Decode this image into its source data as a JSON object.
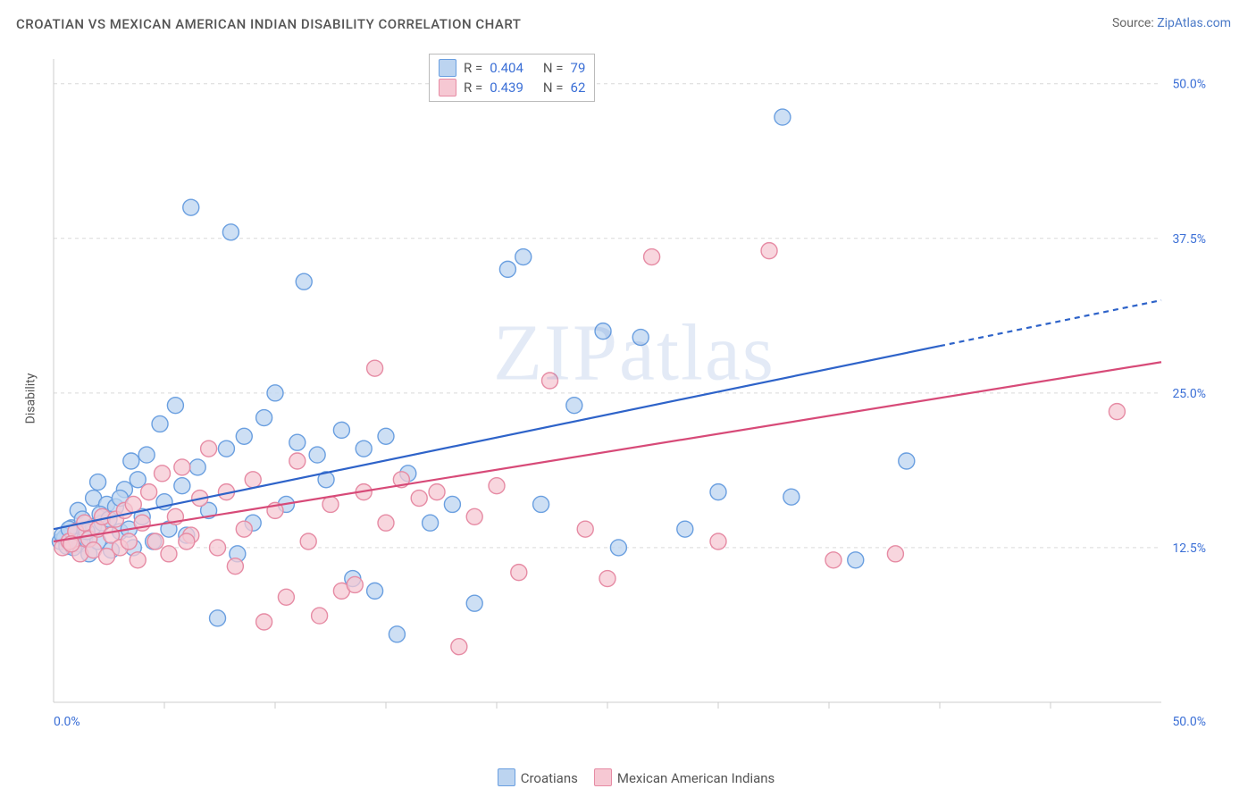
{
  "header": {
    "title": "CROATIAN VS MEXICAN AMERICAN INDIAN DISABILITY CORRELATION CHART",
    "source_prefix": "Source: ",
    "source_link": "ZipAtlas.com"
  },
  "axes": {
    "ylabel": "Disability",
    "x_min_label": "0.0%",
    "x_max_label": "50.0%",
    "y_ticks": [
      {
        "v": 12.5,
        "label": "12.5%"
      },
      {
        "v": 25.0,
        "label": "25.0%"
      },
      {
        "v": 37.5,
        "label": "37.5%"
      },
      {
        "v": 50.0,
        "label": "50.0%"
      }
    ],
    "x_tick_positions": [
      5,
      10,
      15,
      20,
      25,
      30,
      35,
      40,
      45
    ],
    "x_range": [
      0,
      50
    ],
    "y_range": [
      0,
      52
    ]
  },
  "series": [
    {
      "name": "Croatians",
      "color_fill": "#bcd4f0",
      "color_stroke": "#6a9fe0",
      "line_color": "#2e63c9",
      "R": "0.404",
      "N": "79",
      "trend": {
        "x1": 0,
        "y1": 14.0,
        "x2": 50,
        "y2": 32.5,
        "dash_after_x": 40
      },
      "points": [
        [
          0.3,
          13.0
        ],
        [
          0.5,
          13.3
        ],
        [
          0.6,
          12.6
        ],
        [
          0.8,
          14.1
        ],
        [
          1.0,
          13.0
        ],
        [
          1.1,
          15.5
        ],
        [
          1.2,
          12.8
        ],
        [
          1.3,
          14.8
        ],
        [
          1.4,
          13.2
        ],
        [
          1.6,
          12.0
        ],
        [
          1.8,
          14.2
        ],
        [
          1.8,
          16.5
        ],
        [
          2.0,
          13.0
        ],
        [
          2.0,
          17.8
        ],
        [
          2.2,
          14.5
        ],
        [
          2.4,
          16.0
        ],
        [
          2.6,
          12.3
        ],
        [
          2.8,
          15.8
        ],
        [
          3.0,
          13.8
        ],
        [
          3.2,
          17.2
        ],
        [
          3.4,
          14.0
        ],
        [
          3.5,
          19.5
        ],
        [
          3.6,
          12.5
        ],
        [
          3.8,
          18.0
        ],
        [
          4.0,
          15.0
        ],
        [
          4.2,
          20.0
        ],
        [
          4.5,
          13.0
        ],
        [
          4.8,
          22.5
        ],
        [
          5.0,
          16.2
        ],
        [
          5.2,
          14.0
        ],
        [
          5.5,
          24.0
        ],
        [
          5.8,
          17.5
        ],
        [
          6.0,
          13.5
        ],
        [
          6.2,
          40.0
        ],
        [
          6.5,
          19.0
        ],
        [
          7.0,
          15.5
        ],
        [
          7.4,
          6.8
        ],
        [
          7.8,
          20.5
        ],
        [
          8.0,
          38.0
        ],
        [
          8.3,
          12.0
        ],
        [
          8.6,
          21.5
        ],
        [
          9.0,
          14.5
        ],
        [
          9.5,
          23.0
        ],
        [
          10.0,
          25.0
        ],
        [
          10.5,
          16.0
        ],
        [
          11.0,
          21.0
        ],
        [
          11.3,
          34.0
        ],
        [
          11.9,
          20.0
        ],
        [
          12.3,
          18.0
        ],
        [
          13.0,
          22.0
        ],
        [
          13.5,
          10.0
        ],
        [
          14.0,
          20.5
        ],
        [
          14.5,
          9.0
        ],
        [
          15.0,
          21.5
        ],
        [
          15.5,
          5.5
        ],
        [
          16.0,
          18.5
        ],
        [
          17.0,
          14.5
        ],
        [
          18.0,
          16.0
        ],
        [
          19.0,
          8.0
        ],
        [
          20.5,
          35.0
        ],
        [
          21.2,
          36.0
        ],
        [
          22.0,
          16.0
        ],
        [
          23.5,
          24.0
        ],
        [
          24.8,
          30.0
        ],
        [
          25.5,
          12.5
        ],
        [
          26.5,
          29.5
        ],
        [
          28.5,
          14.0
        ],
        [
          30.0,
          17.0
        ],
        [
          32.9,
          47.3
        ],
        [
          33.3,
          16.6
        ],
        [
          36.2,
          11.5
        ],
        [
          38.5,
          19.5
        ],
        [
          0.4,
          13.5
        ],
        [
          0.7,
          14.0
        ],
        [
          0.9,
          12.5
        ],
        [
          1.5,
          13.8
        ],
        [
          2.1,
          15.2
        ],
        [
          2.5,
          14.8
        ],
        [
          3.0,
          16.5
        ]
      ]
    },
    {
      "name": "Mexican American Indians",
      "color_fill": "#f6c8d3",
      "color_stroke": "#e68ba4",
      "line_color": "#d74a78",
      "R": "0.439",
      "N": "62",
      "trend": {
        "x1": 0,
        "y1": 13.0,
        "x2": 50,
        "y2": 27.5,
        "dash_after_x": 50
      },
      "points": [
        [
          0.4,
          12.5
        ],
        [
          0.7,
          13.0
        ],
        [
          1.0,
          13.8
        ],
        [
          1.2,
          12.0
        ],
        [
          1.4,
          14.5
        ],
        [
          1.6,
          13.2
        ],
        [
          1.8,
          12.3
        ],
        [
          2.0,
          14.0
        ],
        [
          2.2,
          15.0
        ],
        [
          2.4,
          11.8
        ],
        [
          2.6,
          13.5
        ],
        [
          2.8,
          14.8
        ],
        [
          3.0,
          12.5
        ],
        [
          3.2,
          15.5
        ],
        [
          3.4,
          13.0
        ],
        [
          3.6,
          16.0
        ],
        [
          3.8,
          11.5
        ],
        [
          4.0,
          14.5
        ],
        [
          4.3,
          17.0
        ],
        [
          4.6,
          13.0
        ],
        [
          4.9,
          18.5
        ],
        [
          5.2,
          12.0
        ],
        [
          5.5,
          15.0
        ],
        [
          5.8,
          19.0
        ],
        [
          6.2,
          13.5
        ],
        [
          6.6,
          16.5
        ],
        [
          7.0,
          20.5
        ],
        [
          7.4,
          12.5
        ],
        [
          7.8,
          17.0
        ],
        [
          8.2,
          11.0
        ],
        [
          8.6,
          14.0
        ],
        [
          9.0,
          18.0
        ],
        [
          9.5,
          6.5
        ],
        [
          10.0,
          15.5
        ],
        [
          10.5,
          8.5
        ],
        [
          11.0,
          19.5
        ],
        [
          11.5,
          13.0
        ],
        [
          12.0,
          7.0
        ],
        [
          12.5,
          16.0
        ],
        [
          13.0,
          9.0
        ],
        [
          13.6,
          9.5
        ],
        [
          14.0,
          17.0
        ],
        [
          14.5,
          27.0
        ],
        [
          15.0,
          14.5
        ],
        [
          15.7,
          18.0
        ],
        [
          16.5,
          16.5
        ],
        [
          17.3,
          17.0
        ],
        [
          18.3,
          4.5
        ],
        [
          19.0,
          15.0
        ],
        [
          20.0,
          17.5
        ],
        [
          21.0,
          10.5
        ],
        [
          22.4,
          26.0
        ],
        [
          24.0,
          14.0
        ],
        [
          25.0,
          10.0
        ],
        [
          27.0,
          36.0
        ],
        [
          30.0,
          13.0
        ],
        [
          32.3,
          36.5
        ],
        [
          35.2,
          11.5
        ],
        [
          38.0,
          12.0
        ],
        [
          48.0,
          23.5
        ],
        [
          6.0,
          13.0
        ],
        [
          0.8,
          12.8
        ]
      ]
    }
  ],
  "legend": {
    "items": [
      {
        "label": "Croatians",
        "color": "#bcd4f0",
        "stroke": "#6a9fe0"
      },
      {
        "label": "Mexican American Indians",
        "color": "#f6c8d3",
        "stroke": "#e68ba4"
      }
    ]
  },
  "watermark": "ZIPatlas",
  "style": {
    "point_radius": 9,
    "point_stroke_width": 1.4,
    "trend_line_width": 2.2,
    "grid_color": "#d9d9d9",
    "axis_color": "#cccccc",
    "tick_text_color": "#3b6fd6",
    "title_fontsize": 15,
    "background": "#ffffff"
  }
}
